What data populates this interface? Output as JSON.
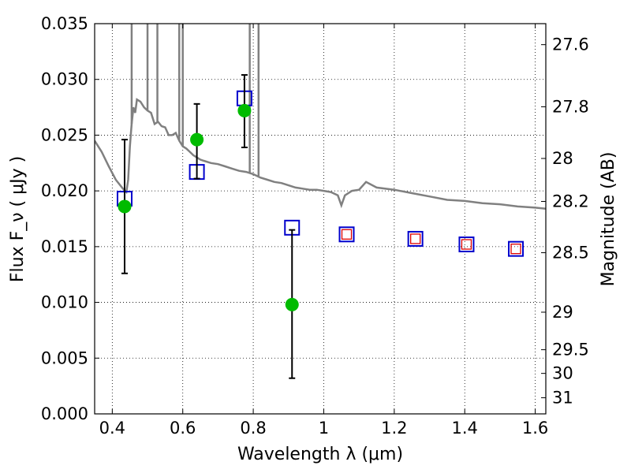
{
  "chart_data": {
    "type": "scatter",
    "xlabel": "Wavelength  λ (μm)",
    "ylabel": "Flux  F_ν  ( μJy )",
    "y2label": "Magnitude (AB)",
    "xlim": [
      0.35,
      1.63
    ],
    "ylim": [
      0.0,
      0.035
    ],
    "grid": true,
    "x_ticks": [
      0.4,
      0.6,
      0.8,
      1.0,
      1.2,
      1.4,
      1.6
    ],
    "x_tick_labels": [
      "0.4",
      "0.6",
      "0.8",
      "1",
      "1.2",
      "1.4",
      "1.6"
    ],
    "y_ticks": [
      0.0,
      0.005,
      0.01,
      0.015,
      0.02,
      0.025,
      0.03,
      0.035
    ],
    "y_tick_labels": [
      "0.000",
      "0.005",
      "0.010",
      "0.015",
      "0.020",
      "0.025",
      "0.030",
      "0.035"
    ],
    "y2_ticks": [
      27.6,
      27.8,
      28.0,
      28.2,
      28.5,
      29.0,
      29.5,
      30.0,
      31.0
    ],
    "y2_tick_labels": [
      "27.6",
      "27.8",
      "28",
      "28.2",
      "28.5",
      "29",
      "29.5",
      "30",
      "31"
    ],
    "series": [
      {
        "kind": "model_spectrum",
        "color": "#808080",
        "x": [
          0.35,
          0.37,
          0.39,
          0.41,
          0.43,
          0.44,
          0.445,
          0.45,
          0.455,
          0.46,
          0.465,
          0.47,
          0.48,
          0.49,
          0.5,
          0.51,
          0.52,
          0.53,
          0.54,
          0.55,
          0.56,
          0.57,
          0.58,
          0.59,
          0.6,
          0.61,
          0.62,
          0.63,
          0.64,
          0.65,
          0.66,
          0.68,
          0.7,
          0.72,
          0.74,
          0.76,
          0.78,
          0.8,
          0.82,
          0.84,
          0.86,
          0.88,
          0.9,
          0.92,
          0.94,
          0.96,
          0.98,
          1.0,
          1.02,
          1.04,
          1.05,
          1.06,
          1.08,
          1.1,
          1.12,
          1.15,
          1.2,
          1.25,
          1.3,
          1.35,
          1.4,
          1.45,
          1.5,
          1.55,
          1.6,
          1.63
        ],
        "y": [
          0.0245,
          0.0235,
          0.0222,
          0.021,
          0.0202,
          0.0199,
          0.021,
          0.024,
          0.026,
          0.0275,
          0.027,
          0.0282,
          0.028,
          0.0275,
          0.0272,
          0.027,
          0.026,
          0.0262,
          0.0258,
          0.0257,
          0.025,
          0.025,
          0.0252,
          0.0245,
          0.024,
          0.0238,
          0.0235,
          0.0232,
          0.023,
          0.0228,
          0.0227,
          0.0225,
          0.0224,
          0.0222,
          0.022,
          0.0218,
          0.0217,
          0.0215,
          0.0212,
          0.021,
          0.0208,
          0.0207,
          0.0205,
          0.0203,
          0.0202,
          0.0201,
          0.0201,
          0.02,
          0.0199,
          0.0196,
          0.0187,
          0.0196,
          0.02,
          0.0201,
          0.0208,
          0.0203,
          0.0201,
          0.0198,
          0.0195,
          0.0192,
          0.0191,
          0.0189,
          0.0188,
          0.0186,
          0.0185,
          0.0184
        ],
        "emission_lines": [
          {
            "x": 0.455,
            "top": 0.035
          },
          {
            "x": 0.5,
            "top": 0.035
          },
          {
            "x": 0.528,
            "top": 0.035
          },
          {
            "x": 0.59,
            "top": 0.035
          },
          {
            "x": 0.6,
            "top": 0.035
          },
          {
            "x": 0.79,
            "top": 0.035
          },
          {
            "x": 0.815,
            "top": 0.035
          }
        ]
      },
      {
        "kind": "model_photometry",
        "marker": "open-square",
        "color": "#0000cc",
        "x": [
          0.435,
          0.64,
          0.775,
          0.91,
          1.065,
          1.26,
          1.405,
          1.545
        ],
        "y": [
          0.0193,
          0.0217,
          0.0283,
          0.0167,
          0.0161,
          0.0157,
          0.0152,
          0.0148
        ]
      },
      {
        "kind": "model_photometry_inner",
        "marker": "open-square-small",
        "color": "#dd0000",
        "x": [
          1.065,
          1.26,
          1.405,
          1.545
        ],
        "y": [
          0.0161,
          0.0157,
          0.0152,
          0.0148
        ]
      },
      {
        "kind": "observed",
        "marker": "filled-circle",
        "color": "#00bb00",
        "x": [
          0.435,
          0.64,
          0.775,
          0.91
        ],
        "y": [
          0.0186,
          0.0246,
          0.0272,
          0.0098
        ],
        "err_low": [
          0.0126,
          0.0211,
          0.0239,
          0.0032
        ],
        "err_high": [
          0.0246,
          0.0278,
          0.0304,
          0.0165
        ]
      }
    ]
  }
}
